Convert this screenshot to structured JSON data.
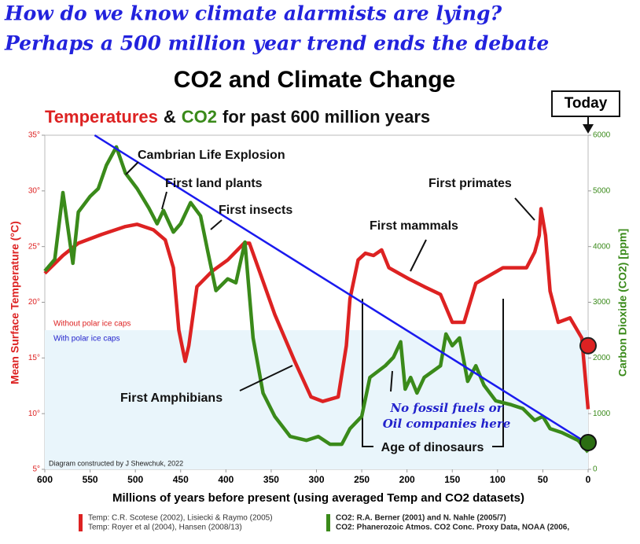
{
  "header": {
    "lines": [
      "How do we know climate alarmists are lying?",
      "Perhaps a 500 million year trend ends the debate"
    ]
  },
  "chart_data": {
    "type": "line",
    "title": "CO2 and Climate Change",
    "subtitle_parts": [
      {
        "text": "Temperatures",
        "color": "#dd2222"
      },
      {
        "text": "&",
        "color": "#111111"
      },
      {
        "text": "CO2",
        "color": "#3a8a1a"
      },
      {
        "text": "for past 600 million years",
        "color": "#111111"
      }
    ],
    "today_label": "Today",
    "x_label": "Millions of years before present (using averaged Temp and CO2 datasets)",
    "y_label": "Mean Surface Temperature  (°C)",
    "y2_label": "Carbon Dioxide (CO2) [ppm]",
    "xlim": [
      600,
      0
    ],
    "xticks": [
      600,
      550,
      500,
      450,
      400,
      350,
      300,
      250,
      200,
      150,
      100,
      50,
      0
    ],
    "ylim": [
      5,
      35
    ],
    "yticks": [
      {
        "value": 5,
        "label": "5°"
      },
      {
        "value": 10,
        "label": "10°"
      },
      {
        "value": 15,
        "label": "15°"
      },
      {
        "value": 20,
        "label": "20°"
      },
      {
        "value": 25,
        "label": "25°"
      },
      {
        "value": 30,
        "label": "30°"
      },
      {
        "value": 35,
        "label": "35°"
      }
    ],
    "y2lim": [
      0,
      6000
    ],
    "y2ticks": [
      0,
      1000,
      2000,
      3000,
      4000,
      5000,
      6000
    ],
    "series": [
      {
        "color": "#dd2222",
        "x": [
          600,
          580,
          563,
          537,
          511,
          498,
          480,
          467,
          458,
          452,
          445,
          441,
          432,
          415,
          398,
          380,
          374,
          363,
          346,
          324,
          306,
          293,
          276,
          267,
          263,
          254,
          246,
          237,
          228,
          220,
          198,
          181,
          163,
          150,
          137,
          124,
          94,
          68,
          59,
          54,
          52,
          47,
          42,
          33,
          20,
          7,
          0
        ],
        "values": [
          22.6,
          24.2,
          25.3,
          26.1,
          26.8,
          27.0,
          26.5,
          25.6,
          23.1,
          17.5,
          14.7,
          16.1,
          21.4,
          22.8,
          23.8,
          25.3,
          25.3,
          22.8,
          18.9,
          14.7,
          11.5,
          11.1,
          11.5,
          16.1,
          20.3,
          23.8,
          24.4,
          24.2,
          24.7,
          23.1,
          22.1,
          21.4,
          20.7,
          18.2,
          18.2,
          21.7,
          23.1,
          23.1,
          24.5,
          26.0,
          28.4,
          26.0,
          21.0,
          18.2,
          18.6,
          16.8,
          10.4
        ]
      },
      {
        "color": "#3a8a1a",
        "axis": "y2",
        "x": [
          600,
          589,
          580,
          569,
          563,
          550,
          541,
          532,
          521,
          511,
          498,
          485,
          476,
          469,
          458,
          450,
          439,
          428,
          420,
          411,
          398,
          389,
          379,
          370,
          359,
          346,
          329,
          311,
          298,
          285,
          272,
          263,
          250,
          241,
          224,
          215,
          207,
          202,
          196,
          189,
          181,
          163,
          157,
          150,
          142,
          133,
          124,
          115,
          102,
          85,
          72,
          59,
          50,
          42,
          29,
          11,
          0
        ],
        "values": [
          3560,
          3770,
          4970,
          3700,
          4620,
          4900,
          5040,
          5460,
          5790,
          5320,
          5040,
          4690,
          4410,
          4650,
          4260,
          4410,
          4790,
          4550,
          3910,
          3210,
          3420,
          3350,
          4080,
          2360,
          1370,
          950,
          590,
          520,
          590,
          450,
          450,
          730,
          950,
          1650,
          1860,
          2010,
          2290,
          1440,
          1650,
          1370,
          1650,
          1860,
          2430,
          2220,
          2360,
          1580,
          1860,
          1510,
          1230,
          1160,
          1090,
          880,
          950,
          730,
          660,
          520,
          310
        ]
      }
    ],
    "trend": {
      "color": "#1a1aee",
      "x": [
        545,
        0
      ],
      "values": [
        35,
        7.3
      ]
    },
    "today_points": {
      "x": 0,
      "temperature": 16.1,
      "co2": 480
    },
    "annotations": [
      "Cambrian Life Explosion",
      "First land plants",
      "First insects",
      "First primates",
      "First mammals",
      "First Amphibians",
      "Age of dinosaurs",
      "No fossil fuels or",
      "Oil companies here"
    ],
    "ice_notes": [
      {
        "text": "Without polar ice caps",
        "color": "#dd2222"
      },
      {
        "text": "With polar ice caps",
        "color": "#2222cc"
      }
    ],
    "credit": "Diagram constructed by J Shewchuk, 2022"
  },
  "sources": {
    "temp": [
      "Temp: C.R. Scotese (2002), Lisiecki & Raymo (2005)",
      "Temp: Royer et al (2004), Hansen (2008/13)"
    ],
    "co2": [
      "CO2: R.A. Berner (2001) and N. Nahle (2005/7)",
      "CO2: Phanerozoic Atmos. CO2 Conc. Proxy Data, NOAA (2006,"
    ]
  }
}
